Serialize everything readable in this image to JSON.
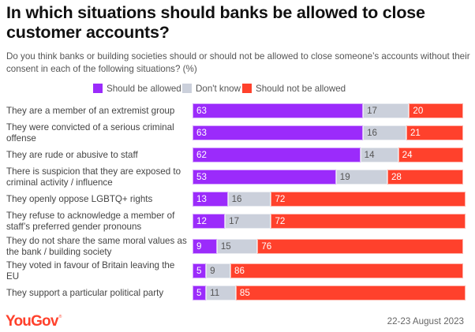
{
  "chart_data": {
    "type": "bar",
    "orientation": "horizontal",
    "stacked": true,
    "title": "In which situations should banks be allowed to close customer accounts?",
    "subtitle": "Do you think banks or building societies should or should not be allowed to close someone’s accounts without their consent in each of the following situations? (%)",
    "xlabel": "",
    "ylabel": "",
    "xlim": [
      0,
      100
    ],
    "grid": false,
    "legend_position": "top-center",
    "categories": [
      "They are a member of an extremist group",
      "They were convicted of a serious criminal offense",
      "They are rude or abusive to staff",
      "There is suspicion that they are exposed to criminal activity / influence",
      "They openly oppose LGBTQ+ rights",
      "They refuse to acknowledge a member of staff’s preferred gender pronouns",
      "They do not share the same moral values as the bank / building society",
      "They voted in favour of Britain leaving the EU",
      "They support a particular political party"
    ],
    "series": [
      {
        "name": "Should be allowed",
        "color": "#9b2bfb",
        "label_color": "#ffffff",
        "values": [
          63,
          63,
          62,
          53,
          13,
          12,
          9,
          5,
          5
        ]
      },
      {
        "name": "Don't know",
        "color": "#cbd0db",
        "label_color": "#555555",
        "values": [
          17,
          16,
          14,
          19,
          16,
          17,
          15,
          9,
          11
        ]
      },
      {
        "name": "Should not be allowed",
        "color": "#ff412c",
        "label_color": "#ffffff",
        "values": [
          20,
          21,
          24,
          28,
          72,
          72,
          76,
          86,
          85
        ]
      }
    ]
  },
  "footer": {
    "brand": "YouGov",
    "brand_color": "#ff412c",
    "date": "22-23 August 2023"
  }
}
